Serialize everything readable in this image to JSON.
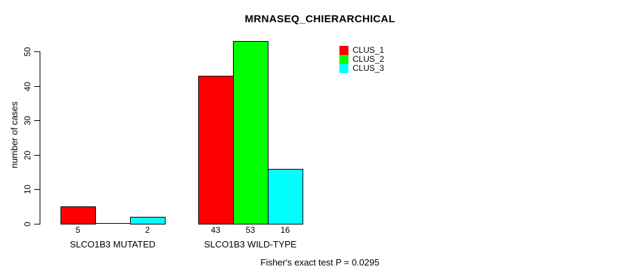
{
  "chart_data": {
    "type": "bar",
    "title": "MRNASEQ_CHIERARCHICAL",
    "ylabel": "number of cases",
    "xlabel": "",
    "ylim": [
      0,
      53
    ],
    "yticks": [
      0,
      10,
      20,
      30,
      40,
      50
    ],
    "grid": false,
    "bar_value_labels_shown": true,
    "categories": [
      "SLCO1B3 MUTATED",
      "SLCO1B3 WILD-TYPE"
    ],
    "series": [
      {
        "name": "CLUS_1",
        "color": "#ff0000",
        "values": [
          5,
          43
        ]
      },
      {
        "name": "CLUS_2",
        "color": "#00ff00",
        "values": [
          0,
          53
        ]
      },
      {
        "name": "CLUS_3",
        "color": "#00ffff",
        "values": [
          2,
          16
        ]
      }
    ],
    "legend": {
      "position": "top-right"
    },
    "annotation": "Fisher's exact test P = 0.0295"
  }
}
